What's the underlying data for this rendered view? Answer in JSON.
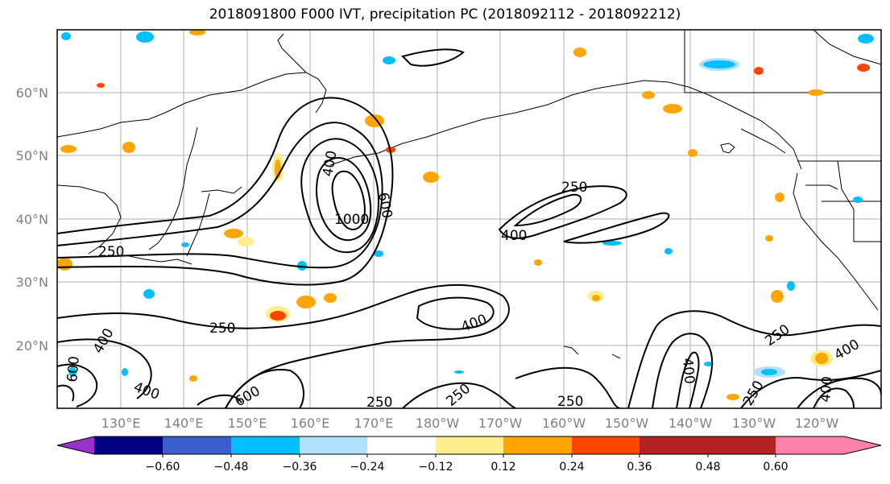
{
  "title": "2018091800 F000 IVT, precipitation PC (2018092112 - 2018092212)",
  "lat_labels": [
    "60°N",
    "50°N",
    "40°N",
    "30°N",
    "20°N"
  ],
  "lon_labels": [
    "130°E",
    "140°E",
    "150°E",
    "160°E",
    "170°E",
    "180°W",
    "170°W",
    "160°W",
    "150°W",
    "140°W",
    "130°W",
    "120°W"
  ],
  "colorbar": {
    "colors": [
      "#9932CC",
      "#000080",
      "#3A5FCD",
      "#00BFFF",
      "#B0E2FF",
      "#FFFFFF",
      "#FFEC8B",
      "#FFA500",
      "#FF4500",
      "#B22222",
      "#FF82AB"
    ],
    "tick_labels": [
      "−0.60",
      "−0.48",
      "−0.36",
      "−0.24",
      "−0.12",
      "0.12",
      "0.24",
      "0.36",
      "0.48",
      "0.60"
    ]
  },
  "contour_labels": [
    "250",
    "400",
    "600",
    "1000",
    "250",
    "400",
    "250",
    "400",
    "600",
    "400",
    "250",
    "400",
    "250",
    "400",
    "250",
    "400",
    "250",
    "400",
    "600",
    "250"
  ]
}
